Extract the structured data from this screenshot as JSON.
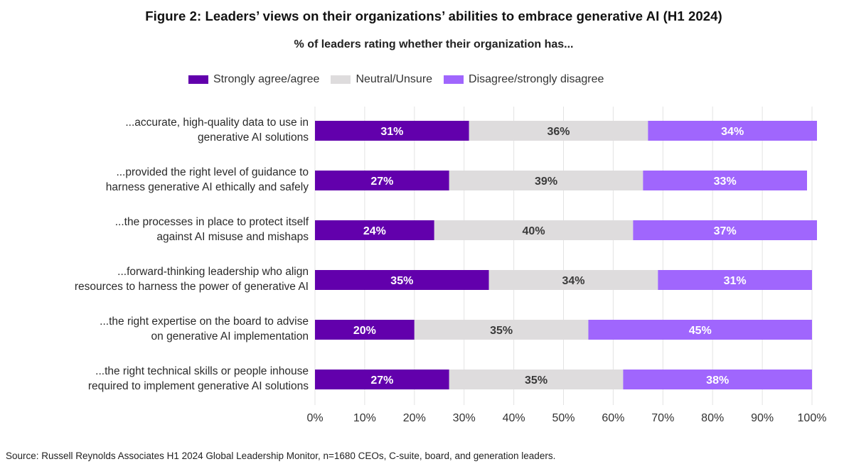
{
  "chart_data": {
    "type": "bar",
    "orientation": "horizontal",
    "stacked": true,
    "title": "Figure 2: Leaders’ views on their organizations’ abilities to embrace generative AI (H1 2024)",
    "subtitle": "% of leaders rating whether their organization has...",
    "xlabel": "",
    "ylabel": "",
    "xlim": [
      0,
      100
    ],
    "x_ticks": [
      "0%",
      "10%",
      "20%",
      "30%",
      "40%",
      "50%",
      "60%",
      "70%",
      "80%",
      "90%",
      "100%"
    ],
    "grid": true,
    "legend_position": "top-center",
    "categories": [
      "...accurate, high-quality data to use in generative AI solutions",
      "...provided the right level of guidance to harness generative AI ethically and safely",
      "...the processes in place to protect itself against AI misuse and mishaps",
      "...forward-thinking leadership who align resources to harness the power of generative AI",
      "...the right expertise on the board to advise on generative AI implementation",
      "...the right technical skills or people inhouse required to implement generative AI solutions"
    ],
    "category_lines": [
      [
        "...accurate, high-quality data to use in",
        "generative AI solutions"
      ],
      [
        "...provided the right level of guidance to",
        "harness generative AI ethically and safely"
      ],
      [
        "...the processes in place to protect itself",
        "against AI misuse and mishaps"
      ],
      [
        "...forward-thinking leadership who align",
        "resources to harness the power of generative AI"
      ],
      [
        "...the right expertise on the board to advise",
        "on generative AI implementation"
      ],
      [
        "...the right technical skills or people inhouse",
        "required to implement generative AI solutions"
      ]
    ],
    "series": [
      {
        "name": "Strongly agree/agree",
        "color": "#6200AC",
        "label_color": "#ffffff",
        "values": [
          31,
          27,
          24,
          35,
          20,
          27
        ]
      },
      {
        "name": "Neutral/Unsure",
        "color": "#DEDCDD",
        "label_color": "#3a3a3a",
        "values": [
          36,
          39,
          40,
          34,
          35,
          35
        ]
      },
      {
        "name": "Disagree/strongly disagree",
        "color": "#A066FD",
        "label_color": "#ffffff",
        "values": [
          34,
          33,
          37,
          31,
          45,
          38
        ]
      }
    ],
    "data_labels": [
      [
        "31%",
        "36%",
        "34%"
      ],
      [
        "27%",
        "39%",
        "33%"
      ],
      [
        "24%",
        "40%",
        "37%"
      ],
      [
        "35%",
        "34%",
        "31%"
      ],
      [
        "20%",
        "35%",
        "45%"
      ],
      [
        "27%",
        "35%",
        "38%"
      ]
    ]
  },
  "colors": {
    "grid": "#E3E3E3",
    "text": "#222222"
  },
  "source": "Source: Russell Reynolds Associates H1 2024 Global Leadership Monitor, n=1680 CEOs, C-suite, board, and generation leaders."
}
